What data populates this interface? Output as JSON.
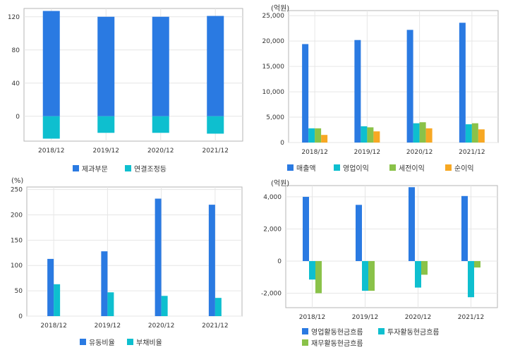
{
  "colors": {
    "blue": "#2a7ae2",
    "teal": "#0ebfcf",
    "green": "#8ac249",
    "orange": "#f7a823",
    "grid": "#e6e6e6",
    "frame": "#b5b5b5"
  },
  "chart_data": [
    {
      "type": "bar",
      "title": "",
      "unit_label": "",
      "categories": [
        "2018/12",
        "2019/12",
        "2020/12",
        "2021/12"
      ],
      "ylim": [
        -30,
        130
      ],
      "yticks": [
        0,
        40,
        80,
        120
      ],
      "ytick_labels": [
        "0",
        "40",
        "80",
        "120"
      ],
      "stacked": true,
      "grid": true,
      "legend_position": "bottom",
      "series": [
        {
          "name": "제과부문",
          "values": [
            127,
            120,
            120,
            121
          ],
          "color": "#2a7ae2"
        },
        {
          "name": "연결조정등",
          "values": [
            -27,
            -20,
            -20,
            -21
          ],
          "color": "#0ebfcf"
        }
      ]
    },
    {
      "type": "bar",
      "title": "",
      "unit_label": "(억원)",
      "categories": [
        "2018/12",
        "2019/12",
        "2020/12",
        "2021/12"
      ],
      "ylim": [
        0,
        26000
      ],
      "yticks": [
        0,
        5000,
        10000,
        15000,
        20000,
        25000
      ],
      "ytick_labels": [
        "0",
        "5,000",
        "10,000",
        "15,000",
        "20,000",
        "25,000"
      ],
      "stacked": false,
      "grid": true,
      "legend_position": "bottom",
      "series": [
        {
          "name": "매출액",
          "values": [
            19400,
            20200,
            22200,
            23600
          ],
          "color": "#2a7ae2"
        },
        {
          "name": "영업이익",
          "values": [
            2800,
            3200,
            3800,
            3600
          ],
          "color": "#0ebfcf"
        },
        {
          "name": "세전이익",
          "values": [
            2800,
            3000,
            4000,
            3800
          ],
          "color": "#8ac249"
        },
        {
          "name": "순이익",
          "values": [
            1500,
            2200,
            2800,
            2600
          ],
          "color": "#f7a823"
        }
      ]
    },
    {
      "type": "bar",
      "title": "",
      "unit_label": "(%)",
      "categories": [
        "2018/12",
        "2019/12",
        "2020/12",
        "2021/12"
      ],
      "ylim": [
        0,
        255
      ],
      "yticks": [
        0,
        50,
        100,
        150,
        200,
        250
      ],
      "ytick_labels": [
        "0",
        "50",
        "100",
        "150",
        "200",
        "250"
      ],
      "stacked": false,
      "grid": true,
      "legend_position": "bottom",
      "series": [
        {
          "name": "유동비율",
          "values": [
            113,
            128,
            232,
            220
          ],
          "color": "#2a7ae2"
        },
        {
          "name": "부채비율",
          "values": [
            63,
            47,
            40,
            36
          ],
          "color": "#0ebfcf"
        }
      ]
    },
    {
      "type": "bar",
      "title": "",
      "unit_label": "(억원)",
      "categories": [
        "2018/12",
        "2019/12",
        "2020/12",
        "2021/12"
      ],
      "ylim": [
        -2900,
        4700
      ],
      "yticks": [
        -2000,
        0,
        2000,
        4000
      ],
      "ytick_labels": [
        "-2,000",
        "0",
        "2,000",
        "4,000"
      ],
      "stacked": false,
      "grid": true,
      "legend_position": "bottom",
      "series": [
        {
          "name": "영업활동현금흐름",
          "values": [
            4000,
            3500,
            4600,
            4050
          ],
          "color": "#2a7ae2"
        },
        {
          "name": "투자활동현금흐름",
          "values": [
            -1150,
            -1850,
            -1650,
            -2250
          ],
          "color": "#0ebfcf"
        },
        {
          "name": "재무활동현금흐름",
          "values": [
            -2000,
            -1850,
            -850,
            -400
          ],
          "color": "#8ac249"
        }
      ]
    }
  ]
}
